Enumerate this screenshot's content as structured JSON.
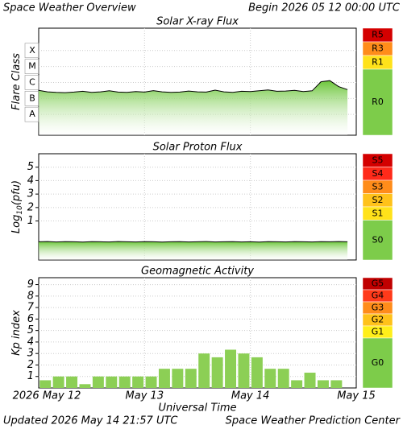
{
  "header": {
    "title": "Space Weather Overview",
    "begin": "Begin 2026 05 12 00:00 UTC"
  },
  "footer": {
    "updated": "Updated 2026 May 14 21:57 UTC",
    "center": "Space Weather Prediction Center"
  },
  "chart_data": [
    {
      "type": "line",
      "title": "Solar X-ray Flux",
      "y_label": [
        "Flare Class"
      ],
      "log": true,
      "grid": true,
      "ylim": [
        5e-10,
        0.0025
      ],
      "yticks": [
        {
          "value": 0.0001,
          "label": "X"
        },
        {
          "value": 1e-05,
          "label": "M"
        },
        {
          "value": 1e-06,
          "label": "C"
        },
        {
          "value": 1e-07,
          "label": "B"
        },
        {
          "value": 1e-08,
          "label": "A"
        }
      ],
      "x": [
        0,
        2,
        4,
        6,
        8,
        10,
        12,
        14,
        16,
        18,
        20,
        22,
        24,
        26,
        28,
        30,
        32,
        34,
        36,
        38,
        40,
        42,
        44,
        46,
        48,
        50,
        52,
        54,
        56,
        58,
        60,
        62,
        64,
        66,
        68,
        70
      ],
      "values": [
        3.2e-07,
        2.6e-07,
        2.4e-07,
        2.3e-07,
        2.5e-07,
        2.8e-07,
        2.4e-07,
        2.6e-07,
        3e-07,
        2.5e-07,
        2.4e-07,
        2.7e-07,
        2.5e-07,
        3.1e-07,
        2.6e-07,
        2.4e-07,
        2.5e-07,
        2.9e-07,
        2.6e-07,
        2.5e-07,
        3.3e-07,
        2.6e-07,
        2.4e-07,
        2.8e-07,
        2.7e-07,
        3e-07,
        3.4e-07,
        2.8e-07,
        2.9e-07,
        3.2e-07,
        2.7e-07,
        3e-07,
        1.1e-06,
        1.3e-06,
        5.5e-07,
        3.6e-07
      ],
      "color": "#000000",
      "fill": "#6cc63a",
      "scale": [
        {
          "label": "R5",
          "color": "#d40000"
        },
        {
          "label": "R3",
          "color": "#ff8c1a"
        },
        {
          "label": "R1",
          "color": "#ffe21a"
        },
        {
          "label": "R0",
          "color": "#7dcc4a"
        }
      ]
    },
    {
      "type": "line",
      "title": "Solar Proton Flux",
      "y_label": [
        "Log",
        "10",
        "(pfu)"
      ],
      "log": false,
      "grid": true,
      "ylim": [
        -1.9,
        6
      ],
      "yticks": [
        1,
        2,
        3,
        4,
        5
      ],
      "x": [
        0,
        2,
        4,
        6,
        8,
        10,
        12,
        14,
        16,
        18,
        20,
        22,
        24,
        26,
        28,
        30,
        32,
        34,
        36,
        38,
        40,
        42,
        44,
        46,
        48,
        50,
        52,
        54,
        56,
        58,
        60,
        62,
        64,
        66,
        68,
        70
      ],
      "values": [
        -0.55,
        -0.53,
        -0.56,
        -0.54,
        -0.55,
        -0.57,
        -0.54,
        -0.55,
        -0.56,
        -0.53,
        -0.55,
        -0.56,
        -0.54,
        -0.55,
        -0.57,
        -0.55,
        -0.54,
        -0.56,
        -0.55,
        -0.53,
        -0.56,
        -0.55,
        -0.54,
        -0.56,
        -0.55,
        -0.57,
        -0.54,
        -0.55,
        -0.56,
        -0.54,
        -0.55,
        -0.56,
        -0.54,
        -0.55,
        -0.53,
        -0.55
      ],
      "color": "#000000",
      "fill": "#6cc63a",
      "scale": [
        {
          "label": "S5",
          "color": "#d40000"
        },
        {
          "label": "S4",
          "color": "#ff2a1a"
        },
        {
          "label": "S3",
          "color": "#ff8c1a"
        },
        {
          "label": "S2",
          "color": "#ffc21a"
        },
        {
          "label": "S1",
          "color": "#ffe21a"
        },
        {
          "label": "S0",
          "color": "#7dcc4a"
        }
      ]
    },
    {
      "type": "bar",
      "title": "Geomagnetic Activity",
      "y_label": [
        "Kp index"
      ],
      "log": false,
      "grid": true,
      "ylim": [
        0,
        9.6
      ],
      "yticks": [
        1,
        2,
        3,
        4,
        5,
        6,
        7,
        8,
        9
      ],
      "x_label": "Universal Time",
      "xlim": [
        0,
        72
      ],
      "xticks": [
        {
          "value": 0,
          "label": "2026 May 12"
        },
        {
          "value": 24,
          "label": "May 13"
        },
        {
          "value": 48,
          "label": "May 14"
        },
        {
          "value": 72,
          "label": "May 15"
        }
      ],
      "x": [
        1.5,
        4.5,
        7.5,
        10.5,
        13.5,
        16.5,
        19.5,
        22.5,
        25.5,
        28.5,
        31.5,
        34.5,
        37.5,
        40.5,
        43.5,
        46.5,
        49.5,
        52.5,
        55.5,
        58.5,
        61.5,
        64.5,
        67.5
      ],
      "values": [
        0.67,
        1,
        1,
        0.33,
        1,
        1,
        1,
        1,
        1,
        1.67,
        1.67,
        1.67,
        3,
        2.67,
        3.33,
        3,
        2.67,
        1.67,
        1.67,
        0.67,
        1.33,
        0.67,
        0.67
      ],
      "color": "#8ccf55",
      "scale": [
        {
          "label": "G5",
          "color": "#c00000"
        },
        {
          "label": "G4",
          "color": "#ff3a1a"
        },
        {
          "label": "G3",
          "color": "#ff8c1a"
        },
        {
          "label": "G2",
          "color": "#ffc21a"
        },
        {
          "label": "G1",
          "color": "#ffef1a"
        },
        {
          "label": "G0",
          "color": "#7dcc4a"
        }
      ]
    }
  ]
}
